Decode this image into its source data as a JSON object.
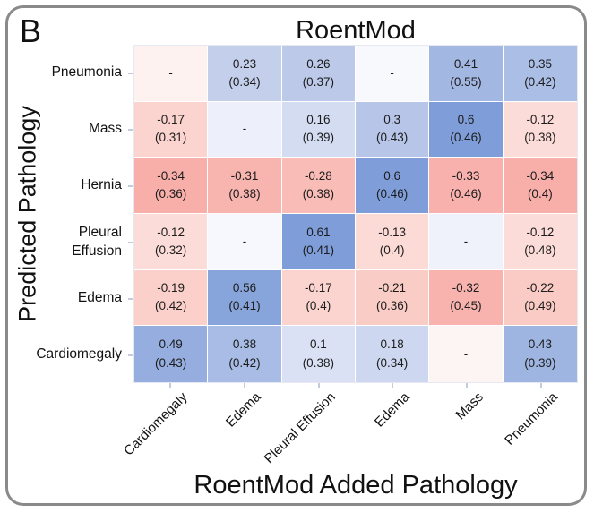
{
  "panel": {
    "label": "B"
  },
  "chart_data": {
    "type": "heatmap",
    "title": "RoentMod",
    "xlabel": "RoentMod Added Pathology",
    "ylabel": "Predicted Pathology",
    "rows": [
      "Pneumonia",
      "Mass",
      "Hernia",
      "Pleural Effusion",
      "Edema",
      "Cardiomegaly"
    ],
    "columns": [
      "Cardiomegaly",
      "Edema",
      "Pleural Effusion",
      "Edema",
      "Mass",
      "Pneumonia"
    ],
    "value_format": "value (std)",
    "colormap": {
      "negative": "#f08080-red",
      "zero": "#ffffff-white",
      "positive": "#7f9ed9-blue"
    },
    "cells": [
      [
        {
          "v": "-",
          "s": null,
          "color": "#fdf2f0"
        },
        {
          "v": "0.23",
          "s": "0.34",
          "color": "#c3cfeb"
        },
        {
          "v": "0.26",
          "s": "0.37",
          "color": "#bcc9e9"
        },
        {
          "v": "-",
          "s": null,
          "color": "#f7f9fd"
        },
        {
          "v": "0.41",
          "s": "0.55",
          "color": "#a3b7e3"
        },
        {
          "v": "0.35",
          "s": "0.42",
          "color": "#abbee6"
        }
      ],
      [
        {
          "v": "-0.17",
          "s": "0.31",
          "color": "#fbd4cf"
        },
        {
          "v": "-",
          "s": null,
          "color": "#edf0fa"
        },
        {
          "v": "0.16",
          "s": "0.39",
          "color": "#d4dcf2"
        },
        {
          "v": "0.3",
          "s": "0.43",
          "color": "#b7c5e9"
        },
        {
          "v": "0.6",
          "s": "0.46",
          "color": "#7f9ed9"
        },
        {
          "v": "-0.12",
          "s": "0.38",
          "color": "#fcdcd8"
        }
      ],
      [
        {
          "v": "-0.34",
          "s": "0.36",
          "color": "#f8afaa"
        },
        {
          "v": "-0.31",
          "s": "0.38",
          "color": "#f8b4af"
        },
        {
          "v": "-0.28",
          "s": "0.38",
          "color": "#f9bcb6"
        },
        {
          "v": "0.6",
          "s": "0.46",
          "color": "#7f9ed9"
        },
        {
          "v": "-0.33",
          "s": "0.46",
          "color": "#f8b1ac"
        },
        {
          "v": "-0.34",
          "s": "0.4",
          "color": "#f8afaa"
        }
      ],
      [
        {
          "v": "-0.12",
          "s": "0.32",
          "color": "#fcdcd8"
        },
        {
          "v": "-",
          "s": null,
          "color": "#f6f8fd"
        },
        {
          "v": "0.61",
          "s": "0.41",
          "color": "#7e9dd9"
        },
        {
          "v": "-0.13",
          "s": "0.4",
          "color": "#fcdad6"
        },
        {
          "v": "-",
          "s": null,
          "color": "#eff2fb"
        },
        {
          "v": "-0.12",
          "s": "0.48",
          "color": "#fcdcd8"
        }
      ],
      [
        {
          "v": "-0.19",
          "s": "0.42",
          "color": "#fbd0ca"
        },
        {
          "v": "0.56",
          "s": "0.41",
          "color": "#87a4db"
        },
        {
          "v": "-0.17",
          "s": "0.4",
          "color": "#fbd4cf"
        },
        {
          "v": "-0.21",
          "s": "0.36",
          "color": "#faccc6"
        },
        {
          "v": "-0.32",
          "s": "0.45",
          "color": "#f8b3ae"
        },
        {
          "v": "-0.22",
          "s": "0.49",
          "color": "#facac4"
        }
      ],
      [
        {
          "v": "0.49",
          "s": "0.43",
          "color": "#95aedf"
        },
        {
          "v": "0.38",
          "s": "0.42",
          "color": "#a8bce5"
        },
        {
          "v": "0.1",
          "s": "0.38",
          "color": "#dae1f4"
        },
        {
          "v": "0.18",
          "s": "0.34",
          "color": "#cdd8f0"
        },
        {
          "v": "-",
          "s": null,
          "color": "#fdf5f3"
        },
        {
          "v": "0.43",
          "s": "0.39",
          "color": "#9eb4e1"
        }
      ]
    ]
  }
}
